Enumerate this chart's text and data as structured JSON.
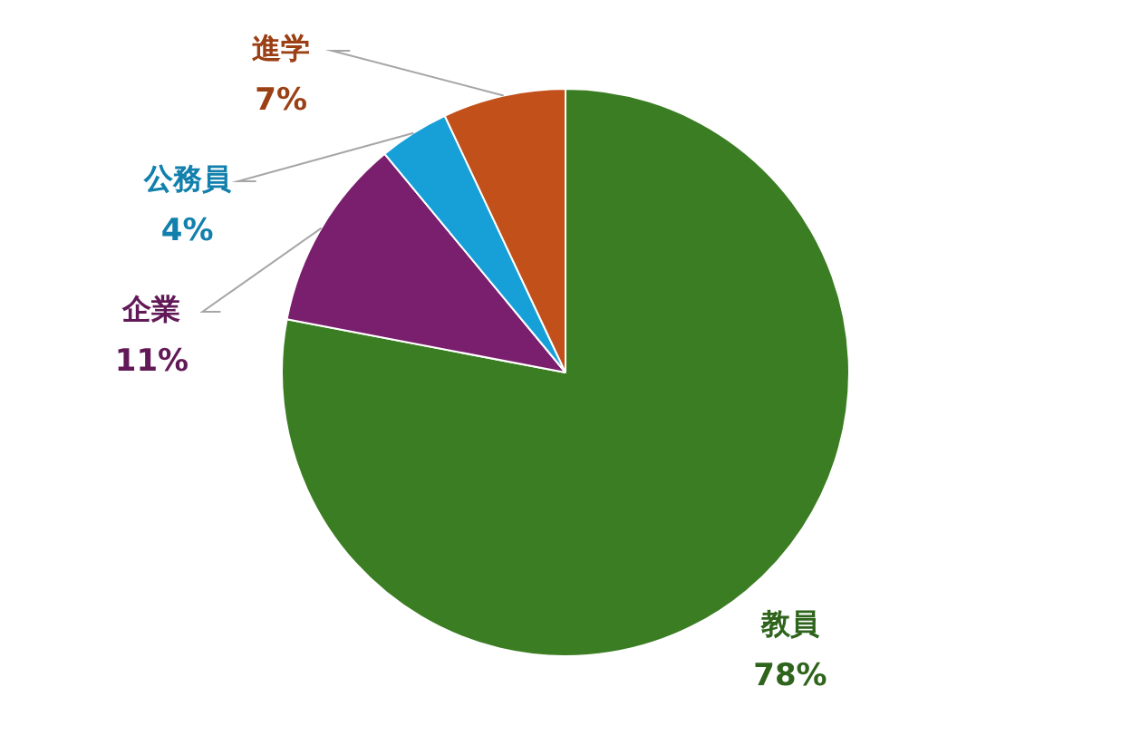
{
  "chart_data": {
    "type": "pie",
    "categories": [
      "教員",
      "企業",
      "公務員",
      "進学"
    ],
    "values": [
      78,
      11,
      4,
      7
    ],
    "value_labels": [
      "78%",
      "11%",
      "4%",
      "7%"
    ],
    "colors": [
      "#3b7d23",
      "#7a1f6d",
      "#17a0d8",
      "#c2501a"
    ],
    "legend": false
  }
}
